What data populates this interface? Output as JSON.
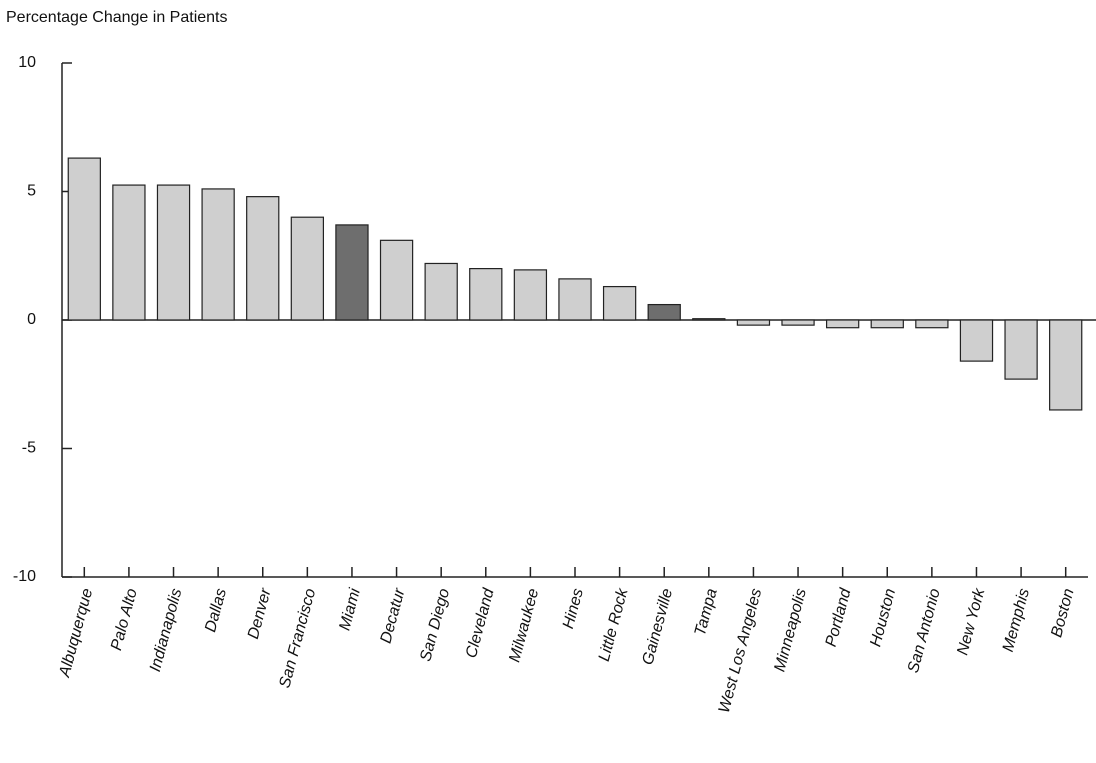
{
  "chart_data": {
    "type": "bar",
    "title": "Percentage Change in Patients",
    "categories": [
      "Albuquerque",
      "Palo Alto",
      "Indianapolis",
      "Dallas",
      "Denver",
      "San Francisco",
      "Miami",
      "Decatur",
      "San Diego",
      "Cleveland",
      "Milwaukee",
      "Hines",
      "Little Rock",
      "Gainesville",
      "Tampa",
      "West Los Angeles",
      "Minneapolis",
      "Portland",
      "Houston",
      "San Antonio",
      "New York",
      "Memphis",
      "Boston"
    ],
    "values": [
      6.3,
      5.25,
      5.25,
      5.1,
      4.8,
      4.0,
      3.7,
      3.1,
      2.2,
      2.0,
      1.95,
      1.6,
      1.3,
      0.6,
      0.05,
      -0.2,
      -0.2,
      -0.3,
      -0.3,
      -0.3,
      -1.6,
      -2.3,
      -3.5
    ],
    "colors": [
      "#cfcfcf",
      "#cfcfcf",
      "#cfcfcf",
      "#cfcfcf",
      "#cfcfcf",
      "#cfcfcf",
      "#6e6e6e",
      "#cfcfcf",
      "#cfcfcf",
      "#cfcfcf",
      "#cfcfcf",
      "#cfcfcf",
      "#cfcfcf",
      "#6e6e6e",
      "#cfcfcf",
      "#cfcfcf",
      "#cfcfcf",
      "#cfcfcf",
      "#cfcfcf",
      "#cfcfcf",
      "#cfcfcf",
      "#cfcfcf",
      "#cfcfcf"
    ],
    "ylim": [
      -10,
      10
    ],
    "yticks": [
      -10,
      -5,
      0,
      5,
      10
    ]
  }
}
